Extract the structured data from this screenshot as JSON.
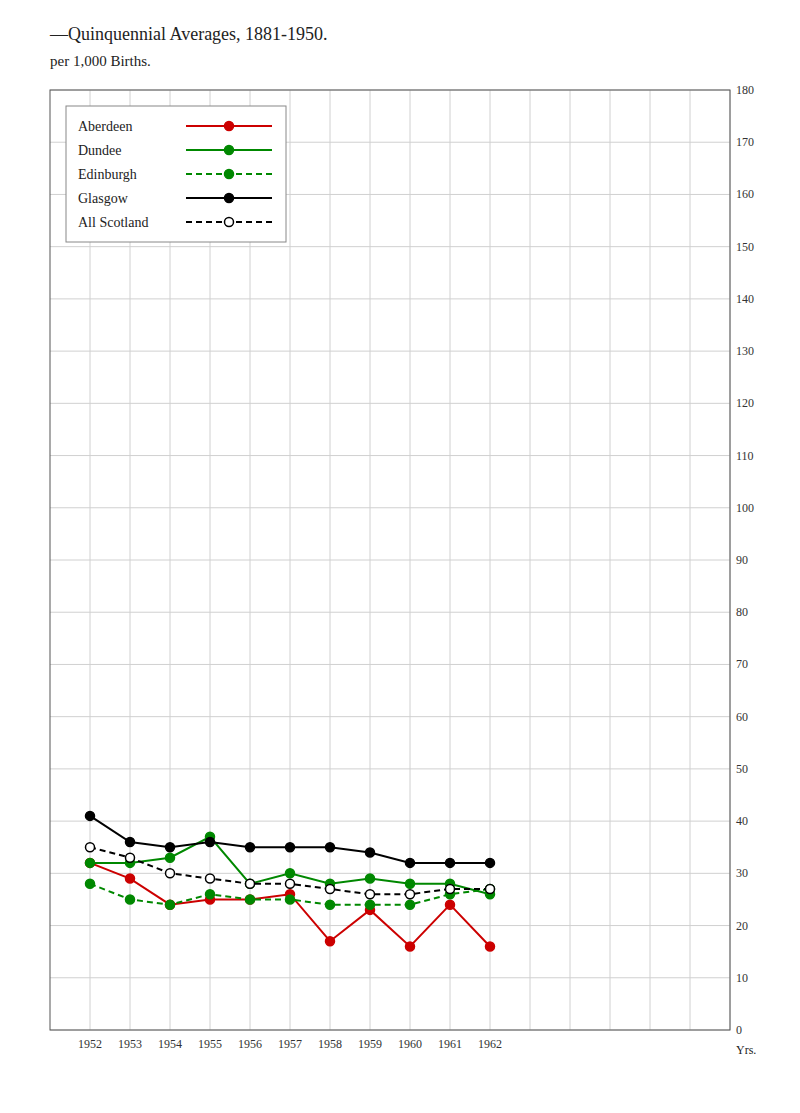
{
  "chart_data": {
    "type": "line",
    "title": "—Quinquennial Averages, 1881-1950.",
    "subtitle": "per 1,000 Births.",
    "x_label": "Yrs.",
    "x": [
      1952,
      1953,
      1954,
      1955,
      1956,
      1957,
      1958,
      1959,
      1960,
      1961,
      1962
    ],
    "xlim": [
      1951,
      1968
    ],
    "xticks": [
      1952,
      1953,
      1954,
      1955,
      1956,
      1957,
      1958,
      1959,
      1960,
      1961,
      1962,
      {
        "value": 1963,
        "label": null
      },
      {
        "value": 1964,
        "label": null
      },
      {
        "value": 1965,
        "label": null
      },
      {
        "value": 1966,
        "label": null
      },
      {
        "value": 1967,
        "label": null
      },
      {
        "value": 1968,
        "label": null
      }
    ],
    "ylim": [
      0,
      180
    ],
    "yticks": [
      0,
      10,
      20,
      30,
      40,
      50,
      60,
      70,
      80,
      90,
      100,
      110,
      120,
      130,
      140,
      150,
      160,
      170,
      180
    ],
    "grid": true,
    "legend": "upper left",
    "series": [
      {
        "name": "Aberdeen",
        "color": "#cc0000",
        "line_style": "solid",
        "marker": "circle",
        "values": [
          32,
          29,
          24,
          25,
          25,
          26,
          17,
          23,
          16,
          24,
          16
        ]
      },
      {
        "name": "Dundee",
        "color": "#008800",
        "line_style": "solid",
        "marker": "circle",
        "values": [
          32,
          32,
          33,
          37,
          28,
          30,
          28,
          29,
          28,
          28,
          26
        ]
      },
      {
        "name": "Edinburgh",
        "color": "#008800",
        "line_style": "dashed",
        "marker": "circle",
        "values": [
          28,
          25,
          24,
          26,
          25,
          25,
          24,
          24,
          24,
          26,
          27
        ]
      },
      {
        "name": "Glasgow",
        "color": "#000000",
        "line_style": "solid",
        "marker": "circle",
        "values": [
          41,
          36,
          35,
          36,
          35,
          35,
          35,
          34,
          32,
          32,
          32
        ]
      },
      {
        "name": "All Scotland",
        "color": "#000000",
        "line_style": "dashed",
        "marker": "open-circle",
        "values": [
          35,
          33,
          30,
          29,
          28,
          28,
          27,
          26,
          26,
          27,
          27
        ]
      }
    ]
  }
}
